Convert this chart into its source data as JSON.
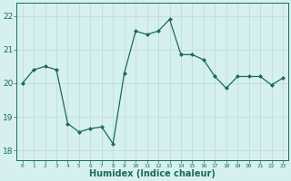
{
  "x": [
    0,
    1,
    2,
    3,
    4,
    5,
    6,
    7,
    8,
    9,
    10,
    11,
    12,
    13,
    14,
    15,
    16,
    17,
    18,
    19,
    20,
    21,
    22,
    23
  ],
  "y": [
    20.0,
    20.4,
    20.5,
    20.4,
    18.8,
    18.55,
    18.65,
    18.7,
    18.2,
    20.3,
    21.55,
    21.45,
    21.55,
    21.9,
    20.85,
    20.85,
    20.7,
    20.2,
    19.85,
    20.2,
    20.2,
    20.2,
    19.95,
    20.15
  ],
  "line_color": "#1a6b5a",
  "marker": "D",
  "marker_size": 2,
  "bg_color": "#d6f0ee",
  "grid_color": "#c0ddd9",
  "tick_color": "#1a6b5a",
  "xlabel": "Humidex (Indice chaleur)",
  "xlabel_fontsize": 7,
  "xlabel_color": "#1a6b5a",
  "yticks": [
    18,
    19,
    20,
    21,
    22
  ],
  "xticks": [
    0,
    1,
    2,
    3,
    4,
    5,
    6,
    7,
    8,
    9,
    10,
    11,
    12,
    13,
    14,
    15,
    16,
    17,
    18,
    19,
    20,
    21,
    22,
    23
  ],
  "xlim": [
    -0.5,
    23.5
  ],
  "ylim": [
    17.7,
    22.4
  ]
}
